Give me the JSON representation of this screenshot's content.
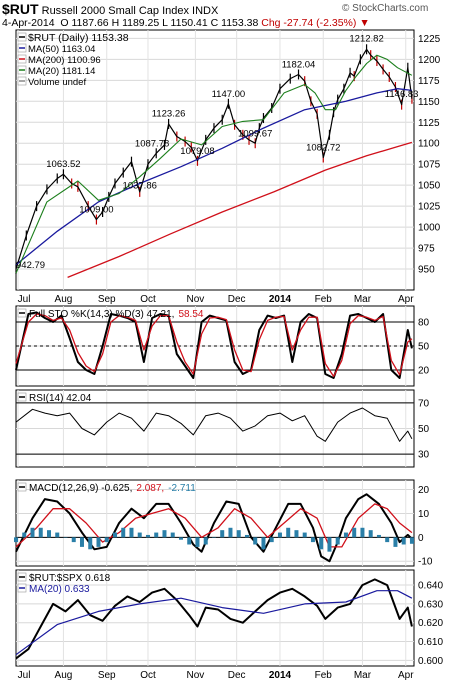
{
  "header": {
    "symbol": "$RUT",
    "name": "Russell 2000 Small Cap Index",
    "exchange": "INDX",
    "date": "4-Apr-2014",
    "open": "O 1187.66",
    "high": "H 1189.25",
    "low": "L 1150.41",
    "close": "C 1153.38",
    "change": "Chg -27.74 (-2.35%)",
    "watermark": "© StockCharts.com"
  },
  "colors": {
    "price": "#000000",
    "ma50": "#1a1a9e",
    "ma200": "#d0101a",
    "ma20": "#1c7f1c",
    "k_line": "#000000",
    "d_line": "#d0101a",
    "macd": "#000000",
    "signal": "#d0101a",
    "hist": "#2a7fa8",
    "ratio": "#000000",
    "ratio_ma": "#1a1a9e",
    "down_bar": "#c00000",
    "up_bar": "#000000"
  },
  "chart_data": [
    {
      "type": "line",
      "panel": "price",
      "legend": [
        {
          "label": "$RUT (Daily) 1153.38",
          "color": "#000000"
        },
        {
          "label": "MA(50) 1163.04",
          "color": "#1a1a9e"
        },
        {
          "label": "MA(200) 1100.96",
          "color": "#d0101a"
        },
        {
          "label": "MA(20) 1181.14",
          "color": "#1c7f1c"
        },
        {
          "label": "Volume undef",
          "color": "#888888"
        }
      ],
      "ylim": [
        925,
        1235
      ],
      "yticks": [
        950,
        975,
        1000,
        1025,
        1050,
        1075,
        1100,
        1125,
        1150,
        1175,
        1200,
        1225
      ],
      "x_labels": [
        "Jul",
        "Aug",
        "Sep",
        "Oct",
        "Nov",
        "Dec",
        "2014",
        "Feb",
        "Mar",
        "Apr"
      ],
      "x_label_pos": [
        1,
        23,
        44,
        64,
        87,
        107,
        128,
        149,
        168,
        189
      ],
      "series": [
        {
          "name": "$RUT",
          "x": [
            0,
            5,
            10,
            15,
            20,
            23,
            27,
            30,
            35,
            39,
            42,
            45,
            48,
            52,
            56,
            60,
            64,
            68,
            72,
            74,
            78,
            82,
            85,
            88,
            92,
            96,
            100,
            103,
            106,
            110,
            113,
            116,
            118,
            120,
            124,
            128,
            133,
            137,
            140,
            143,
            146,
            149,
            152,
            154,
            156,
            159,
            162,
            164,
            167,
            170,
            172,
            175,
            178,
            181,
            184,
            187,
            190,
            192
          ],
          "y": [
            950,
            990,
            1025,
            1045,
            1058,
            1063,
            1052,
            1048,
            1025,
            1009,
            1018,
            1036,
            1052,
            1065,
            1078,
            1042,
            1075,
            1088,
            1098,
            1123,
            1108,
            1102,
            1095,
            1079,
            1104,
            1118,
            1128,
            1147,
            1122,
            1110,
            1104,
            1100,
            1118,
            1130,
            1142,
            1165,
            1177,
            1182,
            1174,
            1150,
            1135,
            1083,
            1110,
            1137,
            1152,
            1165,
            1184,
            1180,
            1200,
            1212,
            1205,
            1198,
            1188,
            1179,
            1167,
            1146,
            1190,
            1153
          ]
        },
        {
          "name": "MA(50)",
          "x": [
            0,
            20,
            40,
            60,
            80,
            100,
            120,
            140,
            160,
            175,
            185,
            192
          ],
          "y": [
            955,
            995,
            1030,
            1052,
            1072,
            1094,
            1118,
            1140,
            1150,
            1160,
            1165,
            1163
          ]
        },
        {
          "name": "MA(200)",
          "x": [
            25,
            50,
            75,
            100,
            125,
            150,
            170,
            185,
            192
          ],
          "y": [
            940,
            965,
            992,
            1018,
            1042,
            1068,
            1085,
            1096,
            1101
          ]
        },
        {
          "name": "MA(20)",
          "x": [
            0,
            15,
            30,
            40,
            50,
            60,
            70,
            80,
            90,
            100,
            110,
            120,
            130,
            140,
            145,
            150,
            155,
            160,
            165,
            170,
            175,
            180,
            185,
            192
          ],
          "y": [
            945,
            1030,
            1055,
            1032,
            1040,
            1060,
            1082,
            1105,
            1098,
            1120,
            1126,
            1128,
            1160,
            1170,
            1160,
            1140,
            1140,
            1163,
            1180,
            1195,
            1205,
            1200,
            1190,
            1181
          ]
        }
      ],
      "annotations": [
        {
          "text": "942.79",
          "x": 0,
          "y": 942.79
        },
        {
          "text": "1063.52",
          "x": 23,
          "y": 1063.52
        },
        {
          "text": "1009.00",
          "x": 39,
          "y": 1009.0
        },
        {
          "text": "1037.86",
          "x": 60,
          "y": 1037.86
        },
        {
          "text": "1087.78",
          "x": 66,
          "y": 1087.78
        },
        {
          "text": "1079.08",
          "x": 88,
          "y": 1079.08
        },
        {
          "text": "1123.26",
          "x": 74,
          "y": 1123.26
        },
        {
          "text": "1147.00",
          "x": 103,
          "y": 1147.0
        },
        {
          "text": "1099.67",
          "x": 116,
          "y": 1099.67
        },
        {
          "text": "1182.04",
          "x": 137,
          "y": 1182.04
        },
        {
          "text": "1082.72",
          "x": 149,
          "y": 1082.72
        },
        {
          "text": "1212.82",
          "x": 170,
          "y": 1212.82
        },
        {
          "text": "1146.83",
          "x": 187,
          "y": 1146.83
        }
      ]
    },
    {
      "type": "line",
      "panel": "stochastic",
      "legend": [
        {
          "label": "Full STO %K(14,3) %D(3) 47.21,",
          "color": "#000000"
        },
        {
          "label": "58.54",
          "color": "#d0101a"
        }
      ],
      "ylim": [
        0,
        100
      ],
      "yticks": [
        20,
        50,
        80
      ],
      "series": [
        {
          "name": "%K",
          "x": [
            0,
            6,
            10,
            14,
            18,
            22,
            26,
            30,
            34,
            38,
            42,
            46,
            50,
            54,
            58,
            62,
            66,
            70,
            74,
            78,
            82,
            86,
            90,
            94,
            98,
            102,
            106,
            110,
            114,
            118,
            122,
            126,
            130,
            134,
            138,
            142,
            146,
            150,
            154,
            158,
            162,
            166,
            170,
            174,
            178,
            182,
            186,
            190,
            192
          ],
          "y": [
            20,
            90,
            92,
            85,
            80,
            88,
            60,
            30,
            20,
            15,
            50,
            90,
            88,
            85,
            80,
            30,
            85,
            90,
            88,
            40,
            25,
            10,
            80,
            88,
            85,
            82,
            30,
            15,
            20,
            70,
            88,
            85,
            88,
            30,
            80,
            90,
            85,
            15,
            10,
            40,
            88,
            90,
            85,
            80,
            90,
            20,
            10,
            70,
            47
          ]
        },
        {
          "name": "%D",
          "x": [
            0,
            6,
            10,
            14,
            18,
            22,
            26,
            30,
            34,
            38,
            42,
            46,
            50,
            54,
            58,
            62,
            66,
            70,
            74,
            78,
            82,
            86,
            90,
            94,
            98,
            102,
            106,
            110,
            114,
            118,
            122,
            126,
            130,
            134,
            138,
            142,
            146,
            150,
            154,
            158,
            162,
            166,
            170,
            174,
            178,
            182,
            186,
            190,
            192
          ],
          "y": [
            28,
            80,
            90,
            88,
            82,
            85,
            70,
            42,
            25,
            18,
            40,
            80,
            88,
            86,
            82,
            45,
            75,
            88,
            88,
            55,
            30,
            15,
            65,
            85,
            86,
            83,
            45,
            20,
            18,
            58,
            82,
            86,
            87,
            45,
            70,
            86,
            86,
            28,
            12,
            32,
            78,
            88,
            86,
            82,
            87,
            32,
            14,
            55,
            59
          ]
        }
      ]
    },
    {
      "type": "line",
      "panel": "rsi",
      "legend": [
        {
          "label": "RSI(14) 42.04",
          "color": "#000000"
        }
      ],
      "ylim": [
        20,
        80
      ],
      "yticks": [
        30,
        50,
        70
      ],
      "series": [
        {
          "name": "RSI",
          "x": [
            0,
            8,
            14,
            20,
            26,
            32,
            38,
            44,
            50,
            56,
            62,
            68,
            74,
            80,
            86,
            92,
            98,
            104,
            110,
            116,
            122,
            128,
            134,
            140,
            146,
            150,
            156,
            162,
            168,
            174,
            180,
            186,
            190,
            192
          ],
          "y": [
            55,
            65,
            62,
            60,
            62,
            50,
            45,
            55,
            62,
            58,
            48,
            62,
            60,
            54,
            45,
            60,
            62,
            58,
            48,
            52,
            60,
            62,
            56,
            60,
            44,
            40,
            55,
            62,
            66,
            60,
            58,
            40,
            48,
            42
          ]
        }
      ]
    },
    {
      "type": "line",
      "panel": "macd",
      "legend": [
        {
          "label": "MACD(12,26,9) -0.625,",
          "color": "#000000"
        },
        {
          "label": "2.087,",
          "color": "#d0101a"
        },
        {
          "label": "-2.711",
          "color": "#2a7fa8"
        }
      ],
      "ylim": [
        -12,
        24
      ],
      "yticks": [
        -10,
        0,
        10,
        20
      ],
      "series": [
        {
          "name": "MACD",
          "x": [
            0,
            8,
            14,
            20,
            26,
            32,
            38,
            44,
            50,
            56,
            62,
            68,
            74,
            80,
            86,
            90,
            96,
            102,
            108,
            114,
            120,
            126,
            132,
            138,
            144,
            148,
            152,
            156,
            160,
            166,
            170,
            176,
            182,
            186,
            190,
            192
          ],
          "y": [
            -6,
            8,
            16,
            15,
            10,
            2,
            -5,
            -4,
            6,
            12,
            8,
            14,
            14,
            6,
            -3,
            -6,
            6,
            15,
            14,
            0,
            -6,
            4,
            14,
            14,
            4,
            -8,
            -10,
            -2,
            8,
            16,
            18,
            14,
            6,
            -2,
            1,
            -0.6
          ]
        },
        {
          "name": "Signal",
          "x": [
            0,
            10,
            18,
            26,
            34,
            42,
            50,
            58,
            66,
            74,
            82,
            90,
            98,
            106,
            114,
            122,
            130,
            138,
            146,
            152,
            158,
            166,
            174,
            180,
            186,
            192
          ],
          "y": [
            -4,
            4,
            12,
            12,
            6,
            -2,
            2,
            8,
            10,
            12,
            8,
            0,
            4,
            12,
            8,
            0,
            6,
            12,
            8,
            -4,
            -4,
            8,
            14,
            12,
            6,
            2
          ]
        },
        {
          "name": "Histogram",
          "x": [
            0,
            4,
            8,
            12,
            16,
            20,
            24,
            28,
            32,
            36,
            40,
            44,
            48,
            52,
            56,
            60,
            64,
            68,
            72,
            76,
            80,
            84,
            88,
            92,
            96,
            100,
            104,
            108,
            112,
            116,
            120,
            124,
            128,
            132,
            136,
            140,
            144,
            148,
            152,
            156,
            160,
            164,
            168,
            172,
            176,
            180,
            184,
            188,
            192
          ],
          "y": [
            -2,
            2,
            4,
            4,
            3,
            2,
            0,
            -2,
            -4,
            -5,
            -4,
            -2,
            2,
            4,
            4,
            2,
            1,
            2,
            3,
            2,
            -1,
            -3,
            -4,
            -3,
            0,
            3,
            4,
            3,
            1,
            -3,
            -5,
            -2,
            2,
            4,
            3,
            2,
            -2,
            -5,
            -6,
            -3,
            2,
            4,
            4,
            3,
            1,
            -2,
            -4,
            -3,
            -2.7
          ]
        }
      ]
    },
    {
      "type": "line",
      "panel": "ratio",
      "legend": [
        {
          "label": "$RUT:$SPX 0.618",
          "color": "#000000"
        },
        {
          "label": "MA(20) 0.633",
          "color": "#1a1a9e"
        }
      ],
      "ylim": [
        0.597,
        0.648
      ],
      "yticks": [
        0.6,
        0.61,
        0.62,
        0.63,
        0.64
      ],
      "series": [
        {
          "name": "$RUT:$SPX",
          "x": [
            0,
            6,
            12,
            18,
            24,
            30,
            36,
            42,
            48,
            54,
            60,
            66,
            72,
            78,
            84,
            88,
            92,
            98,
            104,
            110,
            116,
            122,
            128,
            134,
            140,
            146,
            150,
            156,
            162,
            168,
            174,
            180,
            186,
            190,
            192
          ],
          "y": [
            0.601,
            0.606,
            0.618,
            0.63,
            0.626,
            0.632,
            0.624,
            0.621,
            0.629,
            0.634,
            0.631,
            0.636,
            0.638,
            0.632,
            0.624,
            0.618,
            0.628,
            0.627,
            0.622,
            0.62,
            0.626,
            0.632,
            0.636,
            0.638,
            0.634,
            0.629,
            0.622,
            0.628,
            0.63,
            0.64,
            0.643,
            0.64,
            0.622,
            0.628,
            0.618
          ]
        },
        {
          "name": "MA(20)",
          "x": [
            0,
            20,
            40,
            60,
            80,
            100,
            120,
            140,
            160,
            175,
            185,
            192
          ],
          "y": [
            0.603,
            0.619,
            0.626,
            0.63,
            0.633,
            0.628,
            0.625,
            0.63,
            0.631,
            0.637,
            0.637,
            0.633
          ]
        }
      ]
    }
  ]
}
